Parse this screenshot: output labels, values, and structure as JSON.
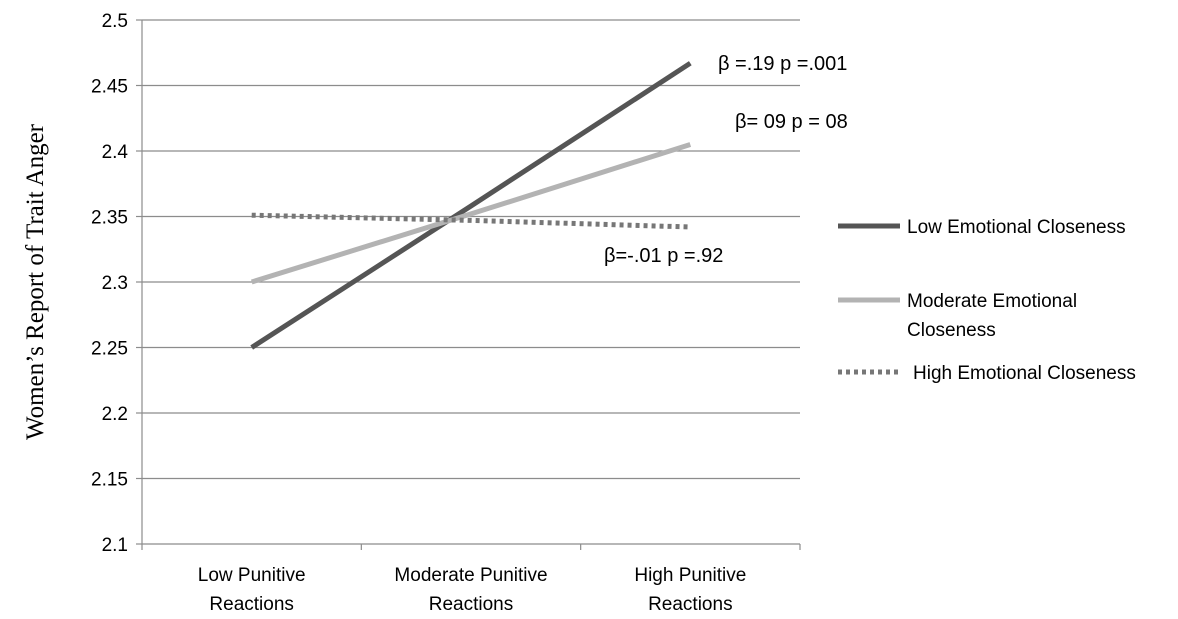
{
  "chart_data": {
    "type": "line",
    "ylabel": "Women’s Report of Trait Anger",
    "xlabel": "",
    "ylim": [
      2.1,
      2.5
    ],
    "yticks": [
      "2.1",
      "2.15",
      "2.2",
      "2.25",
      "2.3",
      "2.35",
      "2.4",
      "2.45",
      "2.5"
    ],
    "categories": [
      [
        "Low Punitive",
        "Reactions"
      ],
      [
        "Moderate Punitive",
        "Reactions"
      ],
      [
        "High Punitive",
        "Reactions"
      ]
    ],
    "grid": true,
    "legend_position": "right",
    "series": [
      {
        "name": "Low Emotional Closeness",
        "legend_lines": [
          "Low Emotional Closeness"
        ],
        "values": [
          2.25,
          2.358,
          2.467
        ],
        "color": "#555555",
        "style": "solid"
      },
      {
        "name": "Moderate Emotional Closeness",
        "legend_lines": [
          "Moderate Emotional",
          "Closeness"
        ],
        "values": [
          2.3,
          2.352,
          2.405
        ],
        "color": "#b3b3b3",
        "style": "solid"
      },
      {
        "name": "High Emotional Closeness",
        "legend_lines": [
          "High Emotional Closeness"
        ],
        "values": [
          2.351,
          2.347,
          2.342
        ],
        "color": "#777777",
        "style": "dotted"
      }
    ],
    "annotations": [
      {
        "text": "β =.19 p =.001",
        "series": "Low Emotional Closeness"
      },
      {
        "text": "β= 09 p = 08",
        "series": "Moderate Emotional Closeness"
      },
      {
        "text": "β=-.01 p =.92",
        "series": "High Emotional Closeness"
      }
    ]
  }
}
